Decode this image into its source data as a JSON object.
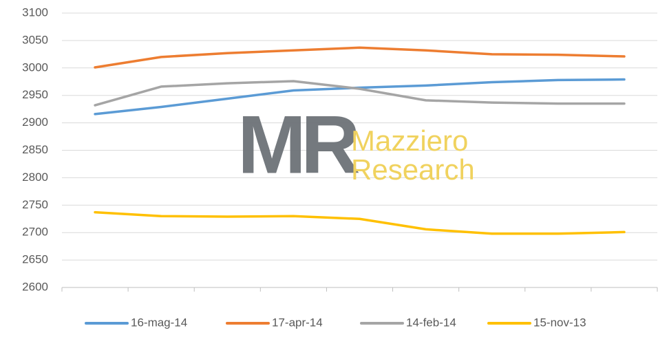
{
  "chart_data": {
    "type": "line",
    "categories": [
      null,
      null,
      null,
      null,
      null,
      null,
      null,
      null,
      null
    ],
    "series": [
      {
        "name": "16-mag-14",
        "color": "#5b9bd5",
        "values": [
          2916,
          2929,
          2944,
          2959,
          2964,
          2968,
          2974,
          2978,
          2979
        ]
      },
      {
        "name": "17-apr-14",
        "color": "#ed7d31",
        "values": [
          3001,
          3020,
          3027,
          3032,
          3037,
          3032,
          3025,
          3024,
          3021
        ]
      },
      {
        "name": "14-feb-14",
        "color": "#a5a5a5",
        "values": [
          2932,
          2966,
          2972,
          2976,
          2962,
          2941,
          2937,
          2935,
          2935
        ]
      },
      {
        "name": "15-nov-13",
        "color": "#ffc000",
        "values": [
          2737,
          2730,
          2729,
          2730,
          2725,
          2706,
          2698,
          2698,
          2701
        ]
      }
    ],
    "ylim": [
      2600,
      3100
    ],
    "yticks": [
      2600,
      2650,
      2700,
      2750,
      2800,
      2850,
      2900,
      2950,
      3000,
      3050,
      3100
    ],
    "grid": true,
    "legend": "bottom",
    "watermark_logo": "MR",
    "watermark_text": [
      "Mazziero",
      "Research"
    ]
  }
}
